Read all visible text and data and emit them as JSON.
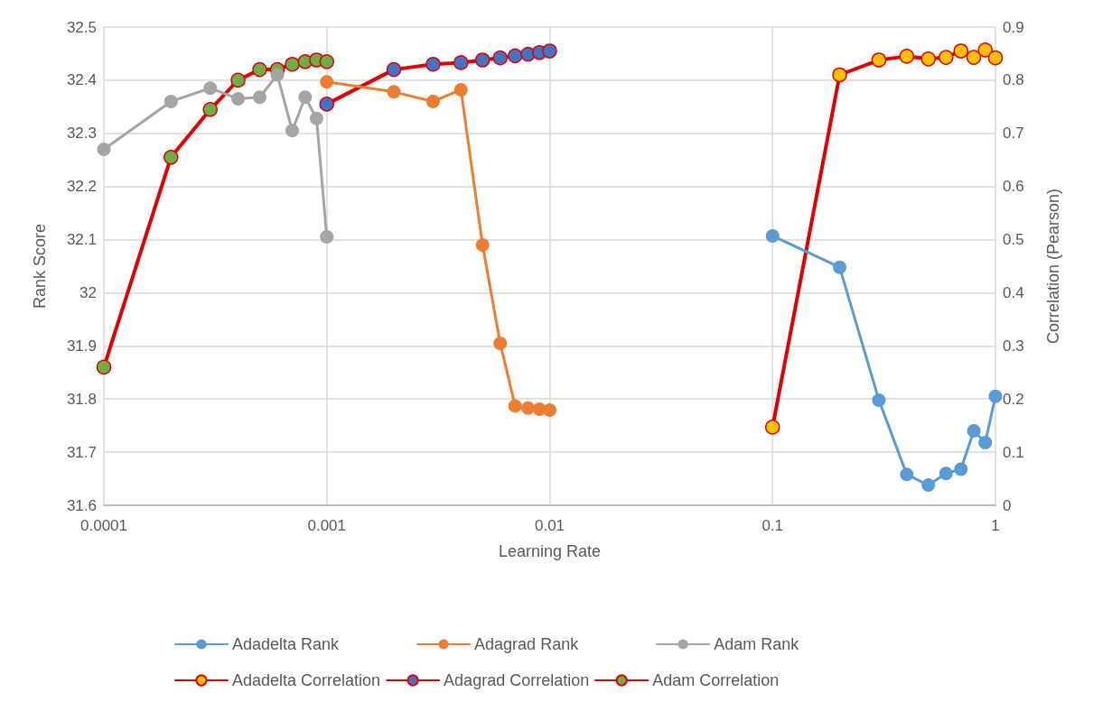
{
  "chart_data": {
    "type": "line",
    "xlabel": "Learning Rate",
    "ylabel": "Rank Score",
    "y2label": "Correlation (Pearson)",
    "log": "x",
    "xlim": [
      0.0001,
      1
    ],
    "xticks": [
      0.0001,
      0.001,
      0.01,
      0.1,
      1
    ],
    "ylim": [
      31.6,
      32.5
    ],
    "yticks": [
      31.6,
      31.7,
      31.8,
      31.9,
      32,
      32.1,
      32.2,
      32.3,
      32.4,
      32.5
    ],
    "y2lim": [
      0,
      0.9
    ],
    "y2ticks": [
      0,
      0.1,
      0.2,
      0.3,
      0.4,
      0.5,
      0.6,
      0.7,
      0.8,
      0.9
    ],
    "grid": true,
    "legend": "bottom",
    "marker": "circle",
    "line_style": "solid",
    "series": [
      {
        "name": "Adadelta Rank",
        "color": "#5b9bd5",
        "x": [
          0.1,
          0.2,
          0.3,
          0.4,
          0.5,
          0.6,
          0.7,
          0.8,
          0.9,
          1
        ],
        "values": [
          32.107,
          32.048,
          31.798,
          31.658,
          31.638,
          31.66,
          31.668,
          31.74,
          31.718,
          31.805
        ]
      },
      {
        "name": "Adagrad Rank",
        "color": "#ed7d31",
        "x": [
          0.001,
          0.002,
          0.003,
          0.004,
          0.005,
          0.006,
          0.007,
          0.008,
          0.009,
          0.01
        ],
        "values": [
          32.397,
          32.378,
          32.36,
          32.382,
          32.09,
          31.905,
          31.787,
          31.783,
          31.781,
          31.779
        ]
      },
      {
        "name": "Adam Rank",
        "color": "#a5a5a5",
        "x": [
          0.0001,
          0.0002,
          0.0003,
          0.0004,
          0.0005,
          0.0006,
          0.0007,
          0.0008,
          0.0009,
          0.001
        ],
        "values": [
          32.27,
          32.36,
          32.385,
          32.365,
          32.368,
          32.41,
          32.305,
          32.368,
          32.328,
          32.105
        ]
      },
      {
        "name": "Adadelta Correlation",
        "color": "#e00000",
        "axis": "y2",
        "colors": [
          "#ffc000",
          "#ffc000",
          "#ffc000",
          "#ffc000",
          "#ffc000",
          "#ffc000",
          "#ffc000",
          "#ffc000",
          "#ffc000",
          "#ffc000"
        ],
        "x": [
          0.1,
          0.2,
          0.3,
          0.4,
          0.5,
          0.6,
          0.7,
          0.8,
          0.9,
          1
        ],
        "values": [
          0.147,
          0.81,
          0.838,
          0.845,
          0.84,
          0.843,
          0.855,
          0.843,
          0.857,
          0.842
        ]
      },
      {
        "name": "Adagrad Correlation",
        "color": "#e00000",
        "axis": "y2",
        "colors": [
          "#4472c4",
          "#4472c4",
          "#4472c4",
          "#4472c4",
          "#4472c4",
          "#4472c4",
          "#4472c4",
          "#4472c4",
          "#4472c4",
          "#4472c4"
        ],
        "x": [
          0.001,
          0.002,
          0.003,
          0.004,
          0.005,
          0.006,
          0.007,
          0.008,
          0.009,
          0.01
        ],
        "values": [
          0.755,
          0.82,
          0.83,
          0.833,
          0.838,
          0.842,
          0.846,
          0.849,
          0.852,
          0.855
        ]
      },
      {
        "name": "Adam Correlation",
        "color": "#e00000",
        "axis": "y2",
        "colors": [
          "#70ad47",
          "#70ad47",
          "#70ad47",
          "#70ad47",
          "#70ad47",
          "#70ad47",
          "#70ad47",
          "#70ad47",
          "#70ad47",
          "#70ad47"
        ],
        "x": [
          0.0001,
          0.0002,
          0.0003,
          0.0004,
          0.0005,
          0.0006,
          0.0007,
          0.0008,
          0.0009,
          0.001
        ],
        "values": [
          0.26,
          0.655,
          0.745,
          0.8,
          0.82,
          0.82,
          0.83,
          0.835,
          0.838,
          0.835
        ]
      }
    ]
  }
}
